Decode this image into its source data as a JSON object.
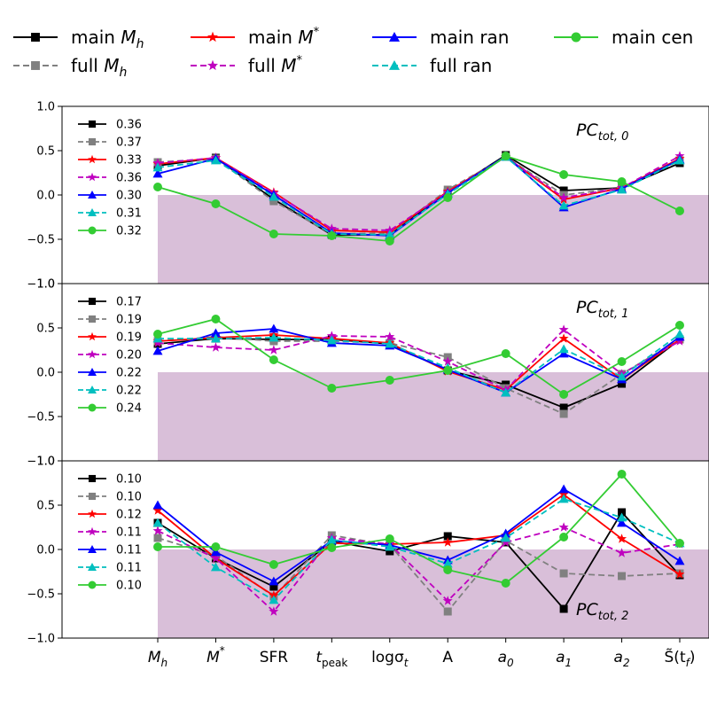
{
  "chart_data": {
    "type": "line",
    "categories": [
      "Mh",
      "M*",
      "SFR",
      "tpeak",
      "logσt",
      "A",
      "a0",
      "a1",
      "a2",
      "S(tf)"
    ],
    "x_tick_labels": [
      {
        "base": "M",
        "sub": "h",
        "sup": ""
      },
      {
        "base": "M",
        "sub": "",
        "sup": "*"
      },
      {
        "base": "SFR",
        "sub": "",
        "sup": ""
      },
      {
        "base": "t",
        "sub": "peak",
        "sup": ""
      },
      {
        "base": "logσ",
        "sub": "t",
        "sup": ""
      },
      {
        "base": "A",
        "sub": "",
        "sup": ""
      },
      {
        "base": "a",
        "sub": "0",
        "sup": ""
      },
      {
        "base": "a",
        "sub": "1",
        "sup": ""
      },
      {
        "base": "a",
        "sub": "2",
        "sup": ""
      },
      {
        "base": "S̃(t",
        "sub": "f",
        "sup": "",
        "tail": ")"
      }
    ],
    "ylim": [
      -1.0,
      1.0
    ],
    "y_ticks": [
      "1.0",
      "0.5",
      "0.0",
      "−0.5",
      "−1.0"
    ],
    "shaded_region": {
      "y_from": -1.0,
      "y_to": 0.0,
      "x_from_category": "Mh",
      "color": "#d9bfd9"
    },
    "legend": [
      {
        "text": "main ",
        "math": "M",
        "sub": "h",
        "sup": "",
        "color": "#000000",
        "dash": false,
        "marker": "square"
      },
      {
        "text": "main ",
        "math": "M",
        "sub": "",
        "sup": "*",
        "color": "#ff0000",
        "dash": false,
        "marker": "star"
      },
      {
        "text": "main ran",
        "math": "",
        "sub": "",
        "sup": "",
        "color": "#0000ff",
        "dash": false,
        "marker": "triangle"
      },
      {
        "text": "main cen",
        "math": "",
        "sub": "",
        "sup": "",
        "color": "#33cc33",
        "dash": false,
        "marker": "circle"
      },
      {
        "text": "full ",
        "math": "M",
        "sub": "h",
        "sup": "",
        "color": "#808080",
        "dash": true,
        "marker": "square"
      },
      {
        "text": "full ",
        "math": "M",
        "sub": "",
        "sup": "*",
        "color": "#bf00bf",
        "dash": true,
        "marker": "star"
      },
      {
        "text": "full ran",
        "math": "",
        "sub": "",
        "sup": "",
        "color": "#00bfbf",
        "dash": true,
        "marker": "triangle"
      }
    ],
    "panels": [
      {
        "title": "PC",
        "title_sub": "tot, 0",
        "title_pos": "top-right",
        "series": [
          {
            "name": "main Mh",
            "variance": "0.36",
            "values": [
              0.33,
              0.42,
              -0.05,
              -0.45,
              -0.45,
              0.03,
              0.45,
              0.05,
              0.08,
              0.36
            ]
          },
          {
            "name": "full Mh",
            "variance": "0.37",
            "values": [
              0.37,
              0.41,
              -0.07,
              -0.44,
              -0.43,
              0.06,
              0.43,
              0.0,
              0.08,
              0.39
            ]
          },
          {
            "name": "main M*",
            "variance": "0.33",
            "values": [
              0.35,
              0.42,
              0.03,
              -0.4,
              -0.42,
              0.04,
              0.43,
              -0.05,
              0.08,
              0.41
            ]
          },
          {
            "name": "full M*",
            "variance": "0.36",
            "values": [
              0.36,
              0.42,
              0.02,
              -0.38,
              -0.4,
              0.03,
              0.43,
              -0.03,
              0.08,
              0.44
            ]
          },
          {
            "name": "main ran",
            "variance": "0.30",
            "values": [
              0.24,
              0.41,
              0.0,
              -0.43,
              -0.46,
              0.02,
              0.44,
              -0.14,
              0.07,
              0.4
            ]
          },
          {
            "name": "full ran",
            "variance": "0.31",
            "values": [
              0.31,
              0.39,
              -0.02,
              -0.44,
              -0.45,
              0.01,
              0.43,
              -0.12,
              0.06,
              0.39
            ]
          },
          {
            "name": "main cen",
            "variance": "0.32",
            "values": [
              0.09,
              -0.1,
              -0.44,
              -0.46,
              -0.52,
              -0.03,
              0.44,
              0.23,
              0.15,
              -0.18
            ]
          }
        ]
      },
      {
        "title": "PC",
        "title_sub": "tot, 1",
        "title_pos": "top-right",
        "series": [
          {
            "name": "main Mh",
            "variance": "0.17",
            "values": [
              0.32,
              0.38,
              0.37,
              0.37,
              0.32,
              0.02,
              -0.14,
              -0.4,
              -0.13,
              0.37
            ]
          },
          {
            "name": "full Mh",
            "variance": "0.19",
            "values": [
              0.35,
              0.4,
              0.35,
              0.35,
              0.33,
              0.17,
              -0.18,
              -0.47,
              -0.02,
              0.37
            ]
          },
          {
            "name": "main M*",
            "variance": "0.19",
            "values": [
              0.35,
              0.39,
              0.42,
              0.38,
              0.33,
              0.01,
              -0.2,
              0.38,
              -0.08,
              0.37
            ]
          },
          {
            "name": "full M*",
            "variance": "0.20",
            "values": [
              0.33,
              0.28,
              0.25,
              0.41,
              0.4,
              0.12,
              -0.2,
              0.48,
              -0.02,
              0.35
            ]
          },
          {
            "name": "main ran",
            "variance": "0.22",
            "values": [
              0.24,
              0.44,
              0.49,
              0.33,
              0.3,
              0.03,
              -0.23,
              0.21,
              -0.08,
              0.4
            ]
          },
          {
            "name": "full ran",
            "variance": "0.22",
            "values": [
              0.38,
              0.38,
              0.39,
              0.36,
              0.32,
              0.05,
              -0.23,
              0.26,
              -0.05,
              0.43
            ]
          },
          {
            "name": "main cen",
            "variance": "0.24",
            "values": [
              0.43,
              0.6,
              0.14,
              -0.18,
              -0.09,
              0.02,
              0.21,
              -0.25,
              0.12,
              0.53
            ]
          }
        ]
      },
      {
        "title": "PC",
        "title_sub": "tot, 2",
        "title_pos": "bottom-right",
        "series": [
          {
            "name": "main Mh",
            "variance": "0.10",
            "values": [
              0.3,
              -0.1,
              -0.42,
              0.09,
              -0.02,
              0.15,
              0.08,
              -0.67,
              0.42,
              -0.29
            ]
          },
          {
            "name": "full Mh",
            "variance": "0.10",
            "values": [
              0.13,
              -0.07,
              -0.53,
              0.16,
              0.05,
              -0.7,
              0.1,
              -0.27,
              -0.3,
              -0.27
            ]
          },
          {
            "name": "main M*",
            "variance": "0.12",
            "values": [
              0.44,
              -0.1,
              -0.52,
              0.07,
              0.06,
              0.08,
              0.16,
              0.62,
              0.12,
              -0.28
            ]
          },
          {
            "name": "full M*",
            "variance": "0.11",
            "values": [
              0.21,
              -0.1,
              -0.7,
              0.13,
              0.06,
              -0.58,
              0.08,
              0.25,
              -0.04,
              0.06
            ]
          },
          {
            "name": "main ran",
            "variance": "0.11",
            "values": [
              0.5,
              -0.03,
              -0.36,
              0.1,
              0.05,
              -0.12,
              0.18,
              0.68,
              0.3,
              -0.13
            ]
          },
          {
            "name": "full ran",
            "variance": "0.11",
            "values": [
              0.3,
              -0.2,
              -0.57,
              0.11,
              0.03,
              -0.16,
              0.13,
              0.57,
              0.36,
              0.07
            ]
          },
          {
            "name": "main cen",
            "variance": "0.10",
            "values": [
              0.03,
              0.03,
              -0.17,
              0.02,
              0.12,
              -0.23,
              -0.38,
              0.14,
              0.85,
              0.07
            ]
          }
        ]
      }
    ]
  }
}
